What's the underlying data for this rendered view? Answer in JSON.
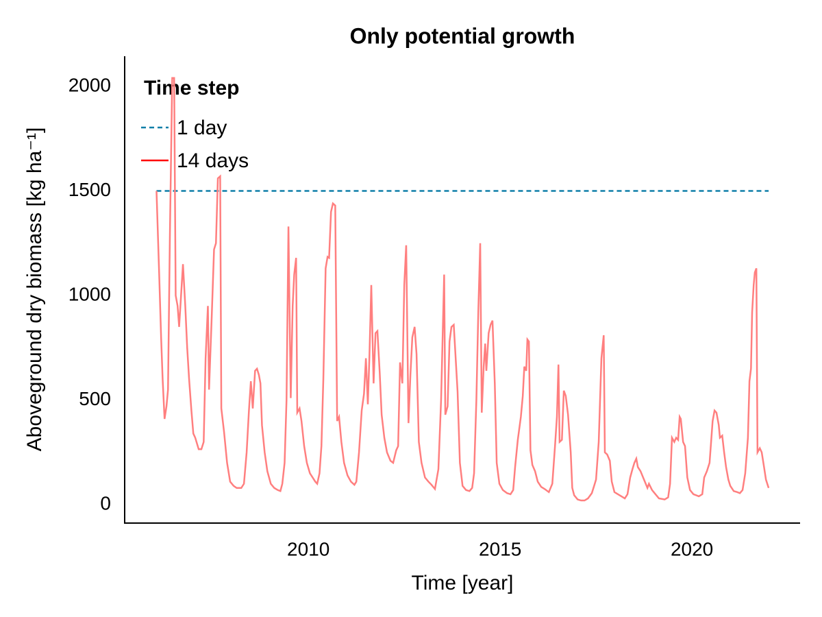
{
  "chart_data": {
    "type": "line",
    "title": "Only potential growth",
    "x_label": "Time [year]",
    "y_label": "Aboveground dry biomass [kg ha⁻¹]",
    "legend_title": "Time step",
    "legend_position": "top left",
    "grid": false,
    "xlim": [
      2005.21,
      2022.82
    ],
    "ylim": [
      -88,
      2144
    ],
    "xticks": [
      2010,
      2015,
      2020
    ],
    "yticks": [
      0,
      500,
      1000,
      1500,
      2000
    ],
    "series": [
      {
        "name": "1 day",
        "color": "#0f7fa8",
        "dash": true,
        "x": [
          2006.04,
          2022.0
        ],
        "values": [
          1500,
          1500
        ]
      },
      {
        "name": "14 days",
        "color": "#ff7f7f",
        "legend_color": "#ff0000",
        "dash": false,
        "x": [
          2006.04,
          2006.11,
          2006.16,
          2006.2,
          2006.25,
          2006.3,
          2006.34,
          2006.39,
          2006.45,
          2006.5,
          2006.54,
          2006.59,
          2006.63,
          2006.68,
          2006.73,
          2006.79,
          2006.84,
          2006.89,
          2006.95,
          2007.0,
          2007.05,
          2007.14,
          2007.21,
          2007.27,
          2007.32,
          2007.38,
          2007.41,
          2007.48,
          2007.54,
          2007.59,
          2007.64,
          2007.7,
          2007.73,
          2007.8,
          2007.88,
          2007.96,
          2008.05,
          2008.13,
          2008.25,
          2008.32,
          2008.39,
          2008.45,
          2008.5,
          2008.55,
          2008.61,
          2008.66,
          2008.71,
          2008.75,
          2008.79,
          2008.86,
          2008.93,
          2009.02,
          2009.11,
          2009.2,
          2009.27,
          2009.32,
          2009.38,
          2009.43,
          2009.48,
          2009.54,
          2009.59,
          2009.63,
          2009.68,
          2009.71,
          2009.77,
          2009.82,
          2009.89,
          2009.96,
          2010.04,
          2010.11,
          2010.18,
          2010.23,
          2010.29,
          2010.34,
          2010.39,
          2010.45,
          2010.5,
          2010.54,
          2010.59,
          2010.64,
          2010.7,
          2010.75,
          2010.8,
          2010.86,
          2010.93,
          2011.02,
          2011.11,
          2011.2,
          2011.25,
          2011.32,
          2011.39,
          2011.45,
          2011.5,
          2011.55,
          2011.59,
          2011.64,
          2011.7,
          2011.75,
          2011.8,
          2011.86,
          2011.91,
          2011.98,
          2012.05,
          2012.14,
          2012.21,
          2012.29,
          2012.34,
          2012.39,
          2012.45,
          2012.5,
          2012.55,
          2012.61,
          2012.66,
          2012.71,
          2012.77,
          2012.82,
          2012.88,
          2012.95,
          2013.04,
          2013.13,
          2013.21,
          2013.3,
          2013.39,
          2013.46,
          2013.54,
          2013.57,
          2013.63,
          2013.68,
          2013.73,
          2013.79,
          2013.84,
          2013.89,
          2013.95,
          2014.02,
          2014.11,
          2014.2,
          2014.27,
          2014.32,
          2014.38,
          2014.43,
          2014.48,
          2014.52,
          2014.57,
          2014.61,
          2014.64,
          2014.7,
          2014.75,
          2014.8,
          2014.86,
          2014.91,
          2014.98,
          2015.07,
          2015.18,
          2015.27,
          2015.34,
          2015.39,
          2015.46,
          2015.54,
          2015.59,
          2015.63,
          2015.68,
          2015.71,
          2015.75,
          2015.79,
          2015.84,
          2015.91,
          2015.98,
          2016.07,
          2016.16,
          2016.27,
          2016.36,
          2016.43,
          2016.48,
          2016.52,
          2016.55,
          2016.61,
          2016.66,
          2016.71,
          2016.77,
          2016.84,
          2016.88,
          2016.93,
          2017.02,
          2017.11,
          2017.2,
          2017.29,
          2017.39,
          2017.45,
          2017.5,
          2017.57,
          2017.64,
          2017.7,
          2017.73,
          2017.79,
          2017.86,
          2017.91,
          2017.98,
          2018.07,
          2018.16,
          2018.25,
          2018.32,
          2018.39,
          2018.45,
          2018.5,
          2018.55,
          2018.59,
          2018.66,
          2018.75,
          2018.84,
          2018.88,
          2018.96,
          2019.05,
          2019.14,
          2019.29,
          2019.38,
          2019.43,
          2019.48,
          2019.54,
          2019.59,
          2019.64,
          2019.68,
          2019.71,
          2019.77,
          2019.82,
          2019.88,
          2019.95,
          2020.04,
          2020.18,
          2020.27,
          2020.32,
          2020.39,
          2020.46,
          2020.54,
          2020.59,
          2020.64,
          2020.7,
          2020.73,
          2020.79,
          2020.84,
          2020.89,
          2020.95,
          2021.0,
          2021.09,
          2021.18,
          2021.25,
          2021.32,
          2021.39,
          2021.46,
          2021.5,
          2021.54,
          2021.57,
          2021.61,
          2021.64,
          2021.68,
          2021.71,
          2021.77,
          2021.82,
          2021.88,
          2021.93,
          2022.0
        ],
        "values": [
          1500,
          1100,
          800,
          600,
          410,
          470,
          550,
          1300,
          2040,
          2040,
          1000,
          950,
          850,
          1000,
          1150,
          950,
          750,
          600,
          450,
          340,
          320,
          265,
          265,
          300,
          700,
          950,
          550,
          900,
          1220,
          1250,
          1560,
          1570,
          460,
          350,
          200,
          110,
          90,
          80,
          80,
          100,
          250,
          450,
          590,
          460,
          640,
          650,
          620,
          580,
          380,
          250,
          160,
          100,
          80,
          70,
          65,
          100,
          200,
          500,
          1330,
          510,
          950,
          1100,
          1180,
          440,
          460,
          400,
          280,
          200,
          150,
          130,
          110,
          100,
          150,
          280,
          600,
          1130,
          1185,
          1180,
          1400,
          1440,
          1430,
          400,
          420,
          300,
          200,
          140,
          110,
          95,
          110,
          250,
          450,
          530,
          700,
          480,
          700,
          1050,
          580,
          820,
          830,
          630,
          430,
          320,
          250,
          210,
          200,
          260,
          280,
          680,
          580,
          1050,
          1240,
          390,
          620,
          800,
          850,
          720,
          300,
          200,
          130,
          110,
          95,
          75,
          170,
          500,
          1100,
          430,
          470,
          780,
          850,
          860,
          700,
          540,
          200,
          90,
          70,
          65,
          80,
          150,
          500,
          920,
          1250,
          440,
          660,
          770,
          640,
          820,
          860,
          880,
          580,
          200,
          100,
          70,
          55,
          50,
          70,
          180,
          310,
          420,
          520,
          660,
          640,
          790,
          780,
          260,
          190,
          160,
          110,
          85,
          75,
          60,
          100,
          280,
          420,
          670,
          300,
          310,
          545,
          520,
          430,
          250,
          80,
          45,
          25,
          20,
          20,
          30,
          55,
          90,
          120,
          300,
          700,
          810,
          250,
          240,
          210,
          110,
          60,
          50,
          40,
          30,
          50,
          130,
          170,
          200,
          220,
          180,
          160,
          120,
          80,
          100,
          70,
          50,
          30,
          25,
          35,
          100,
          320,
          300,
          320,
          310,
          420,
          410,
          300,
          280,
          130,
          70,
          50,
          40,
          50,
          130,
          160,
          200,
          400,
          450,
          440,
          380,
          320,
          330,
          250,
          180,
          120,
          90,
          65,
          60,
          55,
          70,
          150,
          320,
          590,
          650,
          920,
          1050,
          1110,
          1130,
          250,
          270,
          250,
          180,
          120,
          80
        ]
      }
    ]
  }
}
